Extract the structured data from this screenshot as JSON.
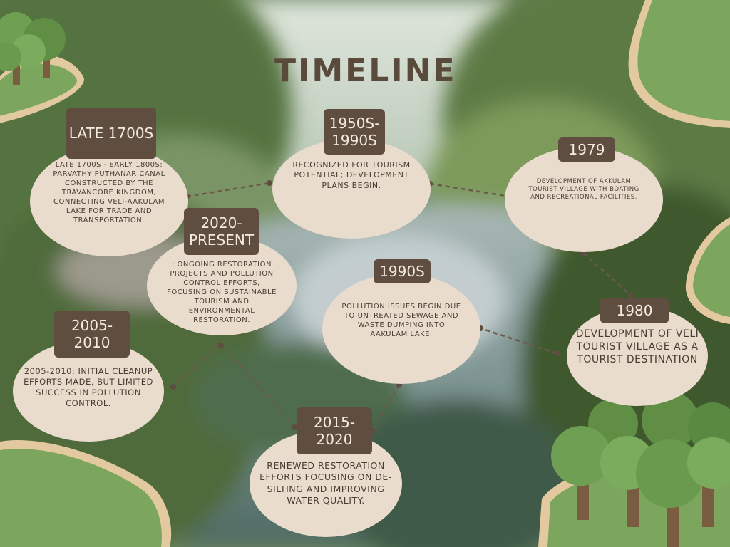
{
  "title": "TIMELINE",
  "colors": {
    "node_fill": "#e9dccc",
    "tag_fill": "#5f4d40",
    "tag_text": "#f3ebe0",
    "text_brown": "#4b3d33",
    "connector": "#6b5a4c",
    "bush_green": "#7ca65e",
    "bush_rim": "#e3c9a0"
  },
  "events": [
    {
      "id": "late-1700s",
      "label": "LATE 1700S",
      "description": "LATE 1700S - EARLY 1800S: PARVATHY PUTHANAR CANAL CONSTRUCTED BY THE TRAVANCORE KINGDOM, CONNECTING VELI-AAKULAM LAKE FOR TRADE AND TRANSPORTATION."
    },
    {
      "id": "1950s-1990s",
      "label": "1950S-1990S",
      "description": "RECOGNIZED FOR TOURISM POTENTIAL; DEVELOPMENT PLANS BEGIN."
    },
    {
      "id": "1979",
      "label": "1979",
      "description": "DEVELOPMENT OF AKKULAM TOURIST VILLAGE WITH BOATING AND RECREATIONAL FACILITIES."
    },
    {
      "id": "2020-present",
      "label": "2020-PRESENT",
      "description": ": ONGOING RESTORATION PROJECTS AND POLLUTION CONTROL EFFORTS, FOCUSING ON SUSTAINABLE TOURISM AND ENVIRONMENTAL RESTORATION."
    },
    {
      "id": "1990s",
      "label": "1990S",
      "description": "POLLUTION ISSUES BEGIN DUE TO UNTREATED SEWAGE AND WASTE DUMPING INTO AAKULAM LAKE."
    },
    {
      "id": "1980",
      "label": "1980",
      "description": "DEVELOPMENT OF VELI TOURIST VILLAGE AS A TOURIST DESTINATION"
    },
    {
      "id": "2005-2010",
      "label": "2005-2010",
      "description": "2005-2010: INITIAL CLEANUP EFFORTS MADE, BUT LIMITED SUCCESS IN POLLUTION CONTROL."
    },
    {
      "id": "2015-2020",
      "label": "2015-2020",
      "description": "RENEWED RESTORATION EFFORTS FOCUSING ON DE-SILTING AND IMPROVING WATER QUALITY."
    }
  ]
}
